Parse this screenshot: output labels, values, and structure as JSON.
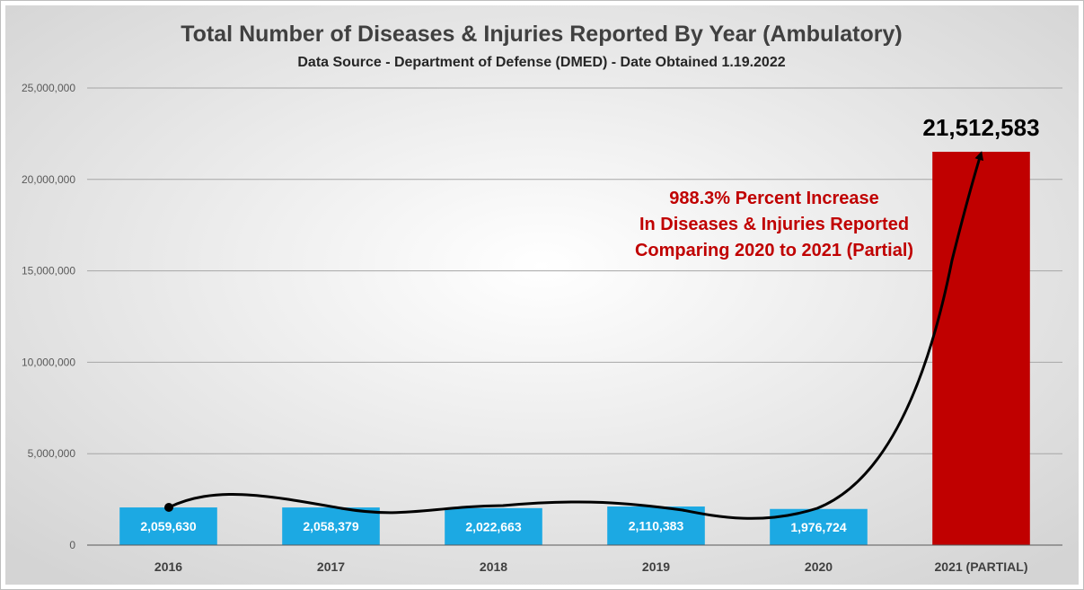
{
  "colors": {
    "bar_blue": "#1ca9e3",
    "bar_red": "#c00000",
    "annotation_red": "#c00000",
    "background_center": "#ffffff",
    "background_edge": "#d4d4d4"
  },
  "chart_data": {
    "type": "bar",
    "title": "Total Number of Diseases & Injuries Reported By Year (Ambulatory)",
    "subtitle": "Data Source - Department of Defense (DMED) - Date Obtained 1.19.2022",
    "categories": [
      "2016",
      "2017",
      "2018",
      "2019",
      "2020",
      "2021 (PARTIAL)"
    ],
    "values": [
      2059630,
      2058379,
      2022663,
      2110383,
      1976724,
      21512583
    ],
    "data_labels": [
      "2,059,630",
      "2,058,379",
      "2,022,663",
      "2,110,383",
      "1,976,724",
      "21,512,583"
    ],
    "ylim": [
      0,
      25000000
    ],
    "y_ticks": [
      0,
      5000000,
      10000000,
      15000000,
      20000000,
      25000000
    ],
    "y_tick_labels": [
      "0",
      "5,000,000",
      "10,000,000",
      "15,000,000",
      "20,000,000",
      "25,000,000"
    ],
    "xlabel": "",
    "ylabel": "",
    "grid": true,
    "legend": "none",
    "annotation": {
      "lines": [
        "988.3% Percent Increase",
        "In Diseases & Injuries Reported",
        "Comparing 2020 to 2021 (Partial)"
      ]
    }
  }
}
